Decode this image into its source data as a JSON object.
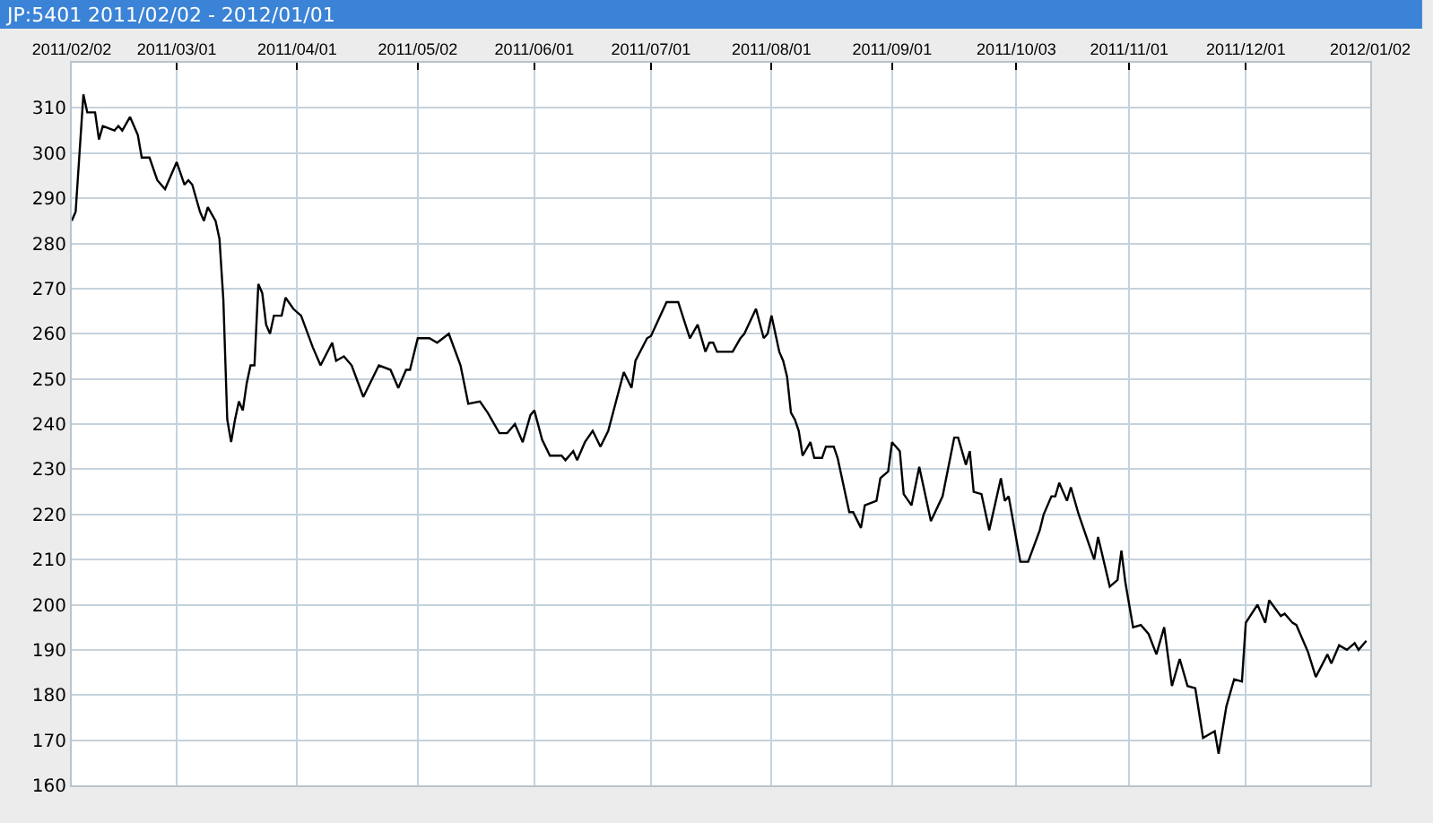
{
  "chart_data": {
    "type": "line",
    "title": "JP:5401 2011/02/02 - 2012/01/01",
    "x": [
      "2011-02-02",
      "2011-02-03",
      "2011-02-04",
      "2011-02-05",
      "2011-02-06",
      "2011-02-08",
      "2011-02-09",
      "2011-02-10",
      "2011-02-13",
      "2011-02-14",
      "2011-02-15",
      "2011-02-17",
      "2011-02-19",
      "2011-02-20",
      "2011-02-22",
      "2011-02-24",
      "2011-02-26",
      "2011-03-01",
      "2011-03-03",
      "2011-03-04",
      "2011-03-05",
      "2011-03-07",
      "2011-03-08",
      "2011-03-09",
      "2011-03-11",
      "2011-03-12",
      "2011-03-13",
      "2011-03-14",
      "2011-03-15",
      "2011-03-16",
      "2011-03-17",
      "2011-03-18",
      "2011-03-19",
      "2011-03-20",
      "2011-03-21",
      "2011-03-22",
      "2011-03-23",
      "2011-03-24",
      "2011-03-25",
      "2011-03-26",
      "2011-03-28",
      "2011-03-29",
      "2011-03-31",
      "2011-04-02",
      "2011-04-05",
      "2011-04-07",
      "2011-04-10",
      "2011-04-11",
      "2011-04-13",
      "2011-04-15",
      "2011-04-18",
      "2011-04-22",
      "2011-04-25",
      "2011-04-27",
      "2011-04-29",
      "2011-04-30",
      "2011-05-02",
      "2011-05-05",
      "2011-05-07",
      "2011-05-10",
      "2011-05-13",
      "2011-05-15",
      "2011-05-18",
      "2011-05-20",
      "2011-05-23",
      "2011-05-25",
      "2011-05-27",
      "2011-05-29",
      "2011-05-31",
      "2011-06-01",
      "2011-06-03",
      "2011-06-05",
      "2011-06-08",
      "2011-06-09",
      "2011-06-11",
      "2011-06-12",
      "2011-06-14",
      "2011-06-16",
      "2011-06-18",
      "2011-06-20",
      "2011-06-24",
      "2011-06-26",
      "2011-06-27",
      "2011-06-30",
      "2011-07-01",
      "2011-07-05",
      "2011-07-08",
      "2011-07-11",
      "2011-07-13",
      "2011-07-15",
      "2011-07-16",
      "2011-07-17",
      "2011-07-18",
      "2011-07-22",
      "2011-07-24",
      "2011-07-25",
      "2011-07-28",
      "2011-07-30",
      "2011-07-31",
      "2011-08-01",
      "2011-08-03",
      "2011-08-04",
      "2011-08-05",
      "2011-08-06",
      "2011-08-07",
      "2011-08-08",
      "2011-08-09",
      "2011-08-11",
      "2011-08-12",
      "2011-08-14",
      "2011-08-15",
      "2011-08-17",
      "2011-08-18",
      "2011-08-21",
      "2011-08-22",
      "2011-08-24",
      "2011-08-25",
      "2011-08-28",
      "2011-08-29",
      "2011-08-31",
      "2011-09-01",
      "2011-09-03",
      "2011-09-04",
      "2011-09-06",
      "2011-09-08",
      "2011-09-11",
      "2011-09-14",
      "2011-09-17",
      "2011-09-18",
      "2011-09-20",
      "2011-09-21",
      "2011-09-22",
      "2011-09-24",
      "2011-09-26",
      "2011-09-29",
      "2011-09-30",
      "2011-10-01",
      "2011-10-04",
      "2011-10-06",
      "2011-10-09",
      "2011-10-10",
      "2011-10-12",
      "2011-10-13",
      "2011-10-14",
      "2011-10-16",
      "2011-10-17",
      "2011-10-19",
      "2011-10-21",
      "2011-10-23",
      "2011-10-24",
      "2011-10-27",
      "2011-10-29",
      "2011-10-30",
      "2011-10-31",
      "2011-11-02",
      "2011-11-04",
      "2011-11-06",
      "2011-11-08",
      "2011-11-10",
      "2011-11-12",
      "2011-11-14",
      "2011-11-16",
      "2011-11-18",
      "2011-11-20",
      "2011-11-23",
      "2011-11-24",
      "2011-11-26",
      "2011-11-28",
      "2011-11-30",
      "2011-12-01",
      "2011-12-04",
      "2011-12-06",
      "2011-12-07",
      "2011-12-10",
      "2011-12-11",
      "2011-12-13",
      "2011-12-14",
      "2011-12-17",
      "2011-12-19",
      "2011-12-22",
      "2011-12-23",
      "2011-12-25",
      "2011-12-27",
      "2011-12-29",
      "2011-12-30",
      "2012-01-01"
    ],
    "series": [
      {
        "color": "#000000",
        "values": [
          285,
          287,
          300,
          313,
          309,
          309,
          303,
          306,
          305,
          306,
          305,
          308,
          304,
          299,
          299,
          294,
          292,
          298,
          293,
          294,
          293,
          287,
          285,
          288,
          285,
          281,
          267.5,
          241,
          236,
          241,
          245,
          243,
          249,
          253,
          253,
          271,
          269,
          262,
          260,
          264,
          264,
          268,
          265.5,
          264,
          257,
          253,
          258,
          254,
          255,
          253,
          246,
          253,
          252,
          248,
          252,
          252,
          259,
          259,
          258,
          260,
          253,
          244.5,
          245,
          242.5,
          238,
          238,
          240,
          236,
          242,
          243,
          236.5,
          233,
          233,
          232,
          234,
          232,
          236,
          238.5,
          235,
          238.5,
          251.5,
          248,
          254,
          259,
          259.5,
          267,
          267,
          259,
          262,
          256,
          258,
          258,
          256,
          256,
          259,
          260,
          265.5,
          259,
          260,
          264,
          256,
          254,
          250.5,
          242.5,
          241,
          238.5,
          233,
          236,
          232.5,
          232.5,
          235,
          235,
          232.5,
          220.5,
          220.5,
          217,
          222,
          223,
          228,
          229.5,
          236,
          234,
          224.5,
          222,
          230.5,
          218.5,
          224,
          237,
          237,
          231,
          234,
          225,
          224.5,
          216.5,
          228,
          223,
          224,
          209.5,
          209.5,
          216.5,
          220,
          224,
          224,
          227,
          223,
          226,
          220,
          215,
          210,
          215,
          204,
          205.5,
          212,
          205,
          195,
          195.5,
          193.5,
          189,
          195,
          182,
          188,
          182,
          181.5,
          170.5,
          172,
          167,
          177.5,
          183.5,
          183,
          196,
          200,
          196,
          201,
          197.5,
          198,
          196,
          195.5,
          189.5,
          184,
          189,
          187,
          191,
          190,
          191.5,
          190,
          192
        ]
      }
    ],
    "xlim": [
      "2011-02-02",
      "2012-01-02"
    ],
    "xticks": [
      {
        "value": "2011-02-02",
        "label": "2011/02/02"
      },
      {
        "value": "2011-03-01",
        "label": "2011/03/01"
      },
      {
        "value": "2011-04-01",
        "label": "2011/04/01"
      },
      {
        "value": "2011-05-02",
        "label": "2011/05/02"
      },
      {
        "value": "2011-06-01",
        "label": "2011/06/01"
      },
      {
        "value": "2011-07-01",
        "label": "2011/07/01"
      },
      {
        "value": "2011-08-01",
        "label": "2011/08/01"
      },
      {
        "value": "2011-09-01",
        "label": "2011/09/01"
      },
      {
        "value": "2011-10-03",
        "label": "2011/10/03"
      },
      {
        "value": "2011-11-01",
        "label": "2011/11/01"
      },
      {
        "value": "2011-12-01",
        "label": "2011/12/01"
      },
      {
        "value": "2012-01-02",
        "label": "2012/01/02"
      }
    ],
    "ylim": [
      160,
      320
    ],
    "yticks": [
      160,
      170,
      180,
      190,
      200,
      210,
      220,
      230,
      240,
      250,
      260,
      270,
      280,
      290,
      300,
      310
    ],
    "grid": true,
    "marker": "none",
    "line_style": "solid"
  }
}
